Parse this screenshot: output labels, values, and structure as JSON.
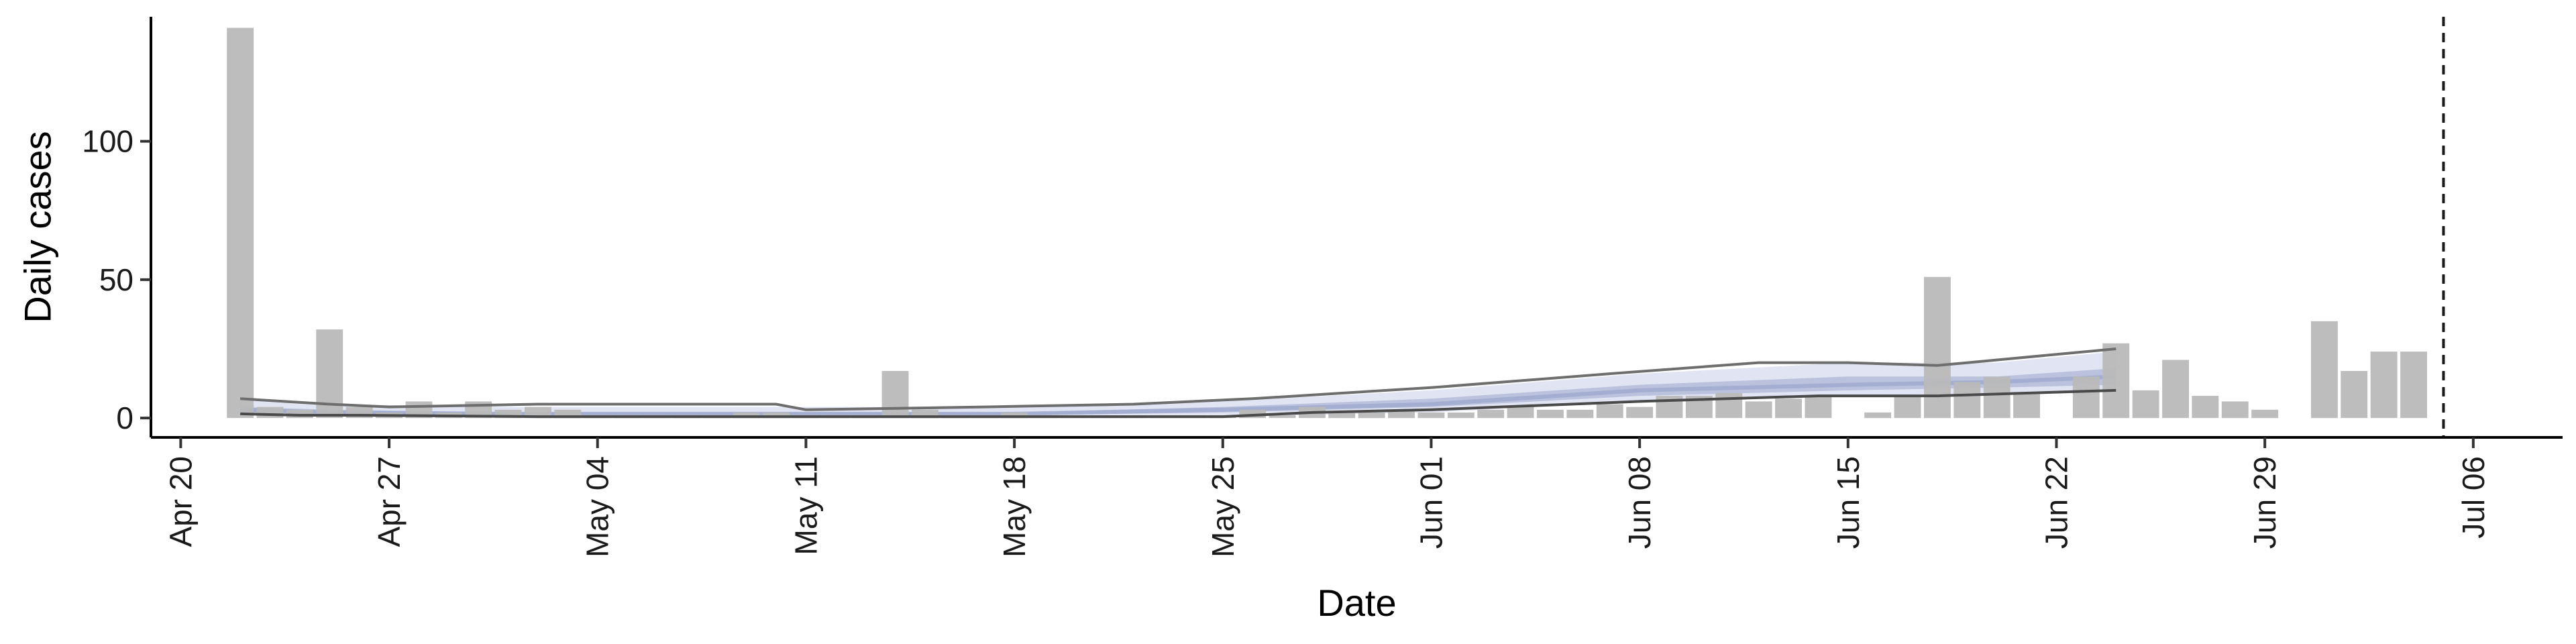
{
  "chart_data": {
    "type": "bar",
    "title": "",
    "xlabel": "Date",
    "ylabel": "Daily cases",
    "grid": false,
    "legend": "none",
    "start_date": "2020-04-20",
    "x_ticks": [
      "Apr 20",
      "Apr 27",
      "May 04",
      "May 11",
      "May 18",
      "May 25",
      "Jun 01",
      "Jun 08",
      "Jun 15",
      "Jun 22",
      "Jun 29",
      "Jul 06"
    ],
    "y_ticks": [
      0,
      50,
      100
    ],
    "ylim": [
      -7,
      145
    ],
    "xlim": [
      "Apr 19",
      "Jul 09"
    ],
    "bar_values": [
      {
        "date": "Apr 22",
        "value": 141
      },
      {
        "date": "Apr 23",
        "value": 4
      },
      {
        "date": "Apr 24",
        "value": 3
      },
      {
        "date": "Apr 25",
        "value": 32
      },
      {
        "date": "Apr 26",
        "value": 4
      },
      {
        "date": "Apr 27",
        "value": 2
      },
      {
        "date": "Apr 28",
        "value": 6
      },
      {
        "date": "Apr 29",
        "value": 2
      },
      {
        "date": "Apr 30",
        "value": 6
      },
      {
        "date": "May 01",
        "value": 3
      },
      {
        "date": "May 02",
        "value": 4
      },
      {
        "date": "May 03",
        "value": 3
      },
      {
        "date": "May 04",
        "value": 1
      },
      {
        "date": "May 05",
        "value": 1
      },
      {
        "date": "May 06",
        "value": 1
      },
      {
        "date": "May 07",
        "value": 1
      },
      {
        "date": "May 08",
        "value": 1
      },
      {
        "date": "May 09",
        "value": 2
      },
      {
        "date": "May 10",
        "value": 2
      },
      {
        "date": "May 11",
        "value": 1
      },
      {
        "date": "May 12",
        "value": 1
      },
      {
        "date": "May 13",
        "value": 1
      },
      {
        "date": "May 14",
        "value": 17
      },
      {
        "date": "May 15",
        "value": 3
      },
      {
        "date": "May 16",
        "value": 1
      },
      {
        "date": "May 17",
        "value": 1
      },
      {
        "date": "May 18",
        "value": 2
      },
      {
        "date": "May 19",
        "value": 1
      },
      {
        "date": "May 20",
        "value": 1
      },
      {
        "date": "May 21",
        "value": 1
      },
      {
        "date": "May 22",
        "value": 1
      },
      {
        "date": "May 23",
        "value": 1
      },
      {
        "date": "May 24",
        "value": 1
      },
      {
        "date": "May 25",
        "value": 1
      },
      {
        "date": "May 26",
        "value": 3
      },
      {
        "date": "May 27",
        "value": 1
      },
      {
        "date": "May 28",
        "value": 4
      },
      {
        "date": "May 29",
        "value": 2
      },
      {
        "date": "May 30",
        "value": 2
      },
      {
        "date": "May 31",
        "value": 3
      },
      {
        "date": "Jun 01",
        "value": 2
      },
      {
        "date": "Jun 02",
        "value": 2
      },
      {
        "date": "Jun 03",
        "value": 3
      },
      {
        "date": "Jun 04",
        "value": 4
      },
      {
        "date": "Jun 05",
        "value": 3
      },
      {
        "date": "Jun 06",
        "value": 3
      },
      {
        "date": "Jun 07",
        "value": 5
      },
      {
        "date": "Jun 08",
        "value": 4
      },
      {
        "date": "Jun 09",
        "value": 8
      },
      {
        "date": "Jun 10",
        "value": 8
      },
      {
        "date": "Jun 11",
        "value": 9
      },
      {
        "date": "Jun 12",
        "value": 6
      },
      {
        "date": "Jun 13",
        "value": 7
      },
      {
        "date": "Jun 14",
        "value": 8
      },
      {
        "date": "Jun 16",
        "value": 2
      },
      {
        "date": "Jun 17",
        "value": 8
      },
      {
        "date": "Jun 18",
        "value": 51
      },
      {
        "date": "Jun 19",
        "value": 13
      },
      {
        "date": "Jun 20",
        "value": 15
      },
      {
        "date": "Jun 21",
        "value": 9
      },
      {
        "date": "Jun 23",
        "value": 15
      },
      {
        "date": "Jun 24",
        "value": 27
      },
      {
        "date": "Jun 25",
        "value": 10
      },
      {
        "date": "Jun 26",
        "value": 21
      },
      {
        "date": "Jun 27",
        "value": 8
      },
      {
        "date": "Jun 28",
        "value": 6
      },
      {
        "date": "Jun 29",
        "value": 3
      },
      {
        "date": "Jul 01",
        "value": 35
      },
      {
        "date": "Jul 02",
        "value": 17
      },
      {
        "date": "Jul 03",
        "value": 24
      },
      {
        "date": "Jul 04",
        "value": 24
      }
    ],
    "estimate_band": {
      "x": [
        "Apr 22",
        "Apr 25",
        "May 01",
        "May 11",
        "May 18",
        "May 25",
        "Jun 01",
        "Jun 08",
        "Jun 15",
        "Jun 20",
        "Jun 24"
      ],
      "outer_upper": [
        7,
        5,
        4,
        4,
        4,
        6,
        10,
        16,
        20,
        20,
        24
      ],
      "outer_lower": [
        1,
        0.5,
        0,
        0,
        0,
        0.5,
        2,
        6,
        8,
        9,
        10
      ],
      "inner_upper": [
        4,
        3,
        2,
        2,
        2,
        4,
        7,
        12,
        15,
        15,
        18
      ],
      "inner_lower": [
        2,
        1.5,
        1,
        1,
        1,
        2,
        4,
        8,
        10,
        11,
        12
      ],
      "median": [
        3,
        2,
        1.5,
        1.5,
        1.5,
        3,
        5,
        10,
        12,
        13,
        15
      ],
      "outer_color": "#dcdff0",
      "inner_color": "#b3bcd9"
    },
    "upper_line": {
      "x": [
        "Apr 22",
        "Apr 25",
        "Apr 27",
        "May 02",
        "May 10",
        "May 11",
        "May 17",
        "May 22",
        "May 26",
        "May 29",
        "Jun 01",
        "Jun 07",
        "Jun 12",
        "Jun 14",
        "Jun 15",
        "Jun 18",
        "Jun 24"
      ],
      "values": [
        7,
        5,
        4,
        5,
        5,
        3,
        4,
        5,
        7,
        9,
        11,
        16,
        20,
        20,
        20,
        19,
        25
      ]
    },
    "lower_line": {
      "x": [
        "Apr 22",
        "Apr 24",
        "Apr 26",
        "May 02",
        "May 25",
        "May 26",
        "May 28",
        "Jun 01",
        "Jun 08",
        "Jun 14",
        "Jun 18",
        "Jun 24"
      ],
      "values": [
        1.5,
        1,
        1,
        0.5,
        0.5,
        1,
        2,
        3,
        6,
        8,
        8,
        10
      ]
    },
    "vline": {
      "date": "Jul 05",
      "style": "dashed"
    },
    "colors": {
      "bars": "#b9b9b9",
      "lines": "#6e6e6e",
      "axis": "#000000",
      "vline": "#1a1a1a"
    }
  }
}
